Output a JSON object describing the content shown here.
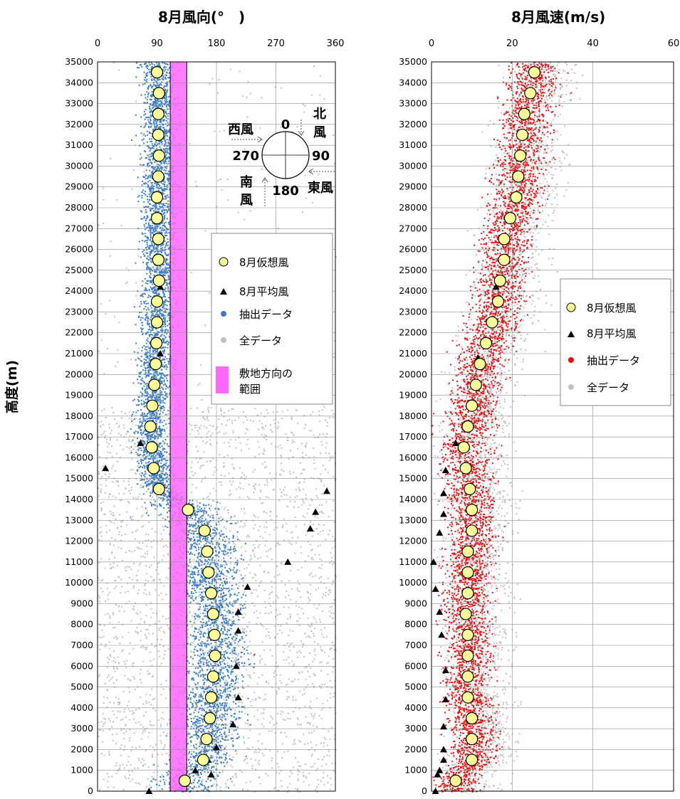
{
  "y_axis_label": "高度(m)",
  "left_chart": {
    "title": "8月風向(°　)",
    "compass": {
      "north_value": "0",
      "east_value": "90",
      "south_value": "180",
      "west_value": "270",
      "west_label": "西風",
      "north_label_1": "北",
      "north_label_2": "風",
      "south_label_1": "南",
      "south_label_2": "風",
      "east_label": "東風"
    },
    "legend": {
      "items": [
        {
          "label": "8月仮想風",
          "color": "#ffff99",
          "marker": "circle"
        },
        {
          "label": "8月平均風",
          "color": "#000000",
          "marker": "triangle"
        },
        {
          "label": "抽出データ",
          "color": "#4472c4",
          "marker": "dot"
        },
        {
          "label": "全データ",
          "color": "#bfbfbf",
          "marker": "dot"
        }
      ],
      "band_label_1": "敷地方向の",
      "band_label_2": "範囲",
      "band_color": "#ff66ff"
    }
  },
  "right_chart": {
    "title": "8月風速(m/s)",
    "legend": {
      "items": [
        {
          "label": "8月仮想風",
          "color": "#ffff99",
          "marker": "circle"
        },
        {
          "label": "8月平均風",
          "color": "#000000",
          "marker": "triangle"
        },
        {
          "label": "抽出データ",
          "color": "#ff0000",
          "marker": "dot"
        },
        {
          "label": "全データ",
          "color": "#bfbfbf",
          "marker": "dot"
        }
      ]
    }
  },
  "chart_data": [
    {
      "type": "scatter",
      "title": "8月風向(°　)",
      "xlabel": "",
      "ylabel": "高度(m)",
      "xlim": [
        0,
        360
      ],
      "ylim": [
        0,
        35000
      ],
      "x_ticks": [
        "0",
        "90",
        "180",
        "270",
        "360"
      ],
      "y_ticks": [
        "0",
        "1000",
        "2000",
        "3000",
        "4000",
        "5000",
        "6000",
        "7000",
        "8000",
        "9000",
        "10000",
        "11000",
        "12000",
        "13000",
        "14000",
        "15000",
        "16000",
        "17000",
        "18000",
        "19000",
        "20000",
        "21000",
        "22000",
        "23000",
        "24000",
        "25000",
        "26000",
        "27000",
        "28000",
        "29000",
        "30000",
        "31000",
        "32000",
        "33000",
        "34000",
        "35000"
      ],
      "x_axis_position": "top",
      "grid": true,
      "site_direction_range": [
        110,
        135
      ],
      "series": [
        {
          "name": "8月仮想風",
          "marker": "circle",
          "points": [
            [
              132,
              500
            ],
            [
              160,
              1500
            ],
            [
              165,
              2500
            ],
            [
              170,
              3500
            ],
            [
              172,
              4500
            ],
            [
              175,
              5500
            ],
            [
              178,
              6500
            ],
            [
              177,
              7500
            ],
            [
              175,
              8500
            ],
            [
              172,
              9500
            ],
            [
              168,
              10500
            ],
            [
              166,
              11500
            ],
            [
              162,
              12500
            ],
            [
              137,
              13500
            ],
            [
              93,
              14500
            ],
            [
              85,
              15500
            ],
            [
              82,
              16500
            ],
            [
              80,
              17500
            ],
            [
              83,
              18500
            ],
            [
              86,
              19500
            ],
            [
              88,
              20500
            ],
            [
              89,
              21500
            ],
            [
              90,
              22500
            ],
            [
              90,
              23500
            ],
            [
              93,
              24500
            ],
            [
              92,
              25500
            ],
            [
              92,
              26500
            ],
            [
              90,
              27500
            ],
            [
              90,
              28500
            ],
            [
              92,
              29500
            ],
            [
              93,
              30500
            ],
            [
              92,
              31500
            ],
            [
              92,
              32500
            ],
            [
              93,
              33500
            ],
            [
              90,
              34500
            ]
          ]
        },
        {
          "name": "8月平均風",
          "marker": "triangle",
          "points": [
            [
              78,
              0
            ],
            [
              172,
              800
            ],
            [
              148,
              1000
            ],
            [
              167,
              1500
            ],
            [
              180,
              2100
            ],
            [
              205,
              3200
            ],
            [
              213,
              4500
            ],
            [
              210,
              6000
            ],
            [
              213,
              7700
            ],
            [
              213,
              8600
            ],
            [
              227,
              9800
            ],
            [
              288,
              11000
            ],
            [
              322,
              12600
            ],
            [
              330,
              13400
            ],
            [
              347,
              14400
            ],
            [
              12,
              15500
            ],
            [
              65,
              16700
            ],
            [
              95,
              21000
            ],
            [
              95,
              24200
            ]
          ]
        }
      ]
    },
    {
      "type": "scatter",
      "title": "8月風速(m/s)",
      "xlabel": "",
      "ylabel": "高度(m)",
      "xlim": [
        0,
        60
      ],
      "ylim": [
        0,
        35000
      ],
      "x_ticks": [
        "0",
        "20",
        "40",
        "60"
      ],
      "y_ticks": [
        "0",
        "1000",
        "2000",
        "3000",
        "4000",
        "5000",
        "6000",
        "7000",
        "8000",
        "9000",
        "10000",
        "11000",
        "12000",
        "13000",
        "14000",
        "15000",
        "16000",
        "17000",
        "18000",
        "19000",
        "20000",
        "21000",
        "22000",
        "23000",
        "24000",
        "25000",
        "26000",
        "27000",
        "28000",
        "29000",
        "30000",
        "31000",
        "32000",
        "33000",
        "34000",
        "35000"
      ],
      "x_axis_position": "top",
      "grid": true,
      "series": [
        {
          "name": "8月仮想風",
          "marker": "circle",
          "points": [
            [
              6,
              500
            ],
            [
              10,
              1500
            ],
            [
              10,
              2500
            ],
            [
              10,
              3500
            ],
            [
              9,
              4500
            ],
            [
              9,
              5500
            ],
            [
              9,
              6500
            ],
            [
              9,
              7500
            ],
            [
              8.5,
              8500
            ],
            [
              9,
              9500
            ],
            [
              9,
              10500
            ],
            [
              9,
              11500
            ],
            [
              10,
              12500
            ],
            [
              10,
              13500
            ],
            [
              9.5,
              14500
            ],
            [
              8.5,
              15500
            ],
            [
              8,
              16500
            ],
            [
              9,
              17500
            ],
            [
              10,
              18500
            ],
            [
              11,
              19500
            ],
            [
              12,
              20500
            ],
            [
              13.5,
              21500
            ],
            [
              15,
              22500
            ],
            [
              16.5,
              23500
            ],
            [
              17,
              24500
            ],
            [
              18,
              25500
            ],
            [
              18,
              26500
            ],
            [
              19.5,
              27500
            ],
            [
              21,
              28500
            ],
            [
              21.5,
              29500
            ],
            [
              22,
              30500
            ],
            [
              22.5,
              31500
            ],
            [
              23,
              32500
            ],
            [
              24.5,
              33500
            ],
            [
              25.5,
              34500
            ]
          ]
        },
        {
          "name": "8月平均風",
          "marker": "triangle",
          "points": [
            [
              1,
              0
            ],
            [
              1.5,
              800
            ],
            [
              2,
              1000
            ],
            [
              3,
              1500
            ],
            [
              3,
              2000
            ],
            [
              3,
              3100
            ],
            [
              3.5,
              4400
            ],
            [
              3.5,
              5800
            ],
            [
              2.5,
              7500
            ],
            [
              2,
              8600
            ],
            [
              1,
              9700
            ],
            [
              0.5,
              11000
            ],
            [
              2,
              12400
            ],
            [
              3,
              13300
            ],
            [
              3,
              14300
            ],
            [
              3.5,
              15400
            ],
            [
              6,
              16700
            ],
            [
              11.5,
              20800
            ],
            [
              16,
              24200
            ]
          ]
        }
      ]
    }
  ]
}
